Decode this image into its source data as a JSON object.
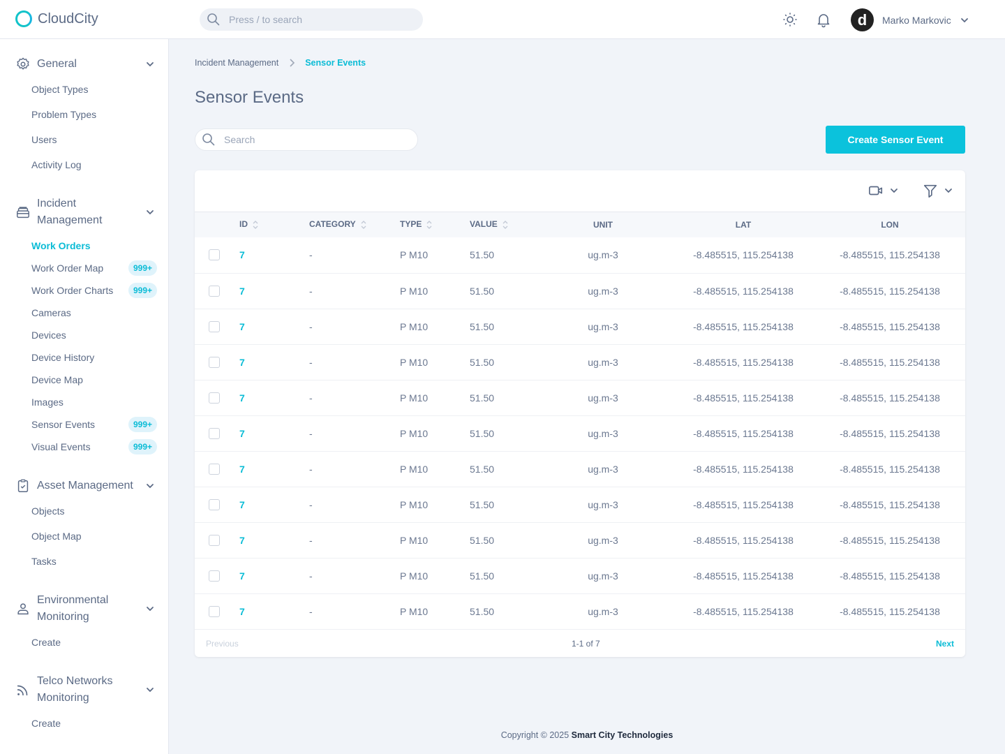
{
  "app": {
    "name": "CloudCity",
    "search_placeholder": "Press / to search",
    "user_name": "Marko Markovic",
    "avatar_letter": "d"
  },
  "sidebar": {
    "general": {
      "label": "General",
      "items": [
        "Object Types",
        "Problem Types",
        "Users",
        "Activity Log"
      ]
    },
    "incident": {
      "label_1": "Incident",
      "label_2": "Management",
      "items": [
        {
          "label": "Work Orders",
          "active": true
        },
        {
          "label": "Work Order Map",
          "badge": "999+"
        },
        {
          "label": "Work Order Charts",
          "badge": "999+"
        },
        {
          "label": "Cameras"
        },
        {
          "label": "Devices"
        },
        {
          "label": "Device History"
        },
        {
          "label": "Device Map"
        },
        {
          "label": "Images"
        },
        {
          "label": "Sensor Events",
          "badge": "999+"
        },
        {
          "label": "Visual Events",
          "badge": "999+"
        }
      ]
    },
    "asset": {
      "label": "Asset Management",
      "items": [
        "Objects",
        "Object Map",
        "Tasks"
      ]
    },
    "env": {
      "label_1": "Environmental",
      "label_2": "Monitoring",
      "items": [
        "Create"
      ]
    },
    "telco": {
      "label_1": "Telco Networks",
      "label_2": "Monitoring",
      "items": [
        "Create"
      ]
    }
  },
  "breadcrumb": {
    "parent": "Incident Management",
    "current": "Sensor Events"
  },
  "page": {
    "title": "Sensor Events",
    "search_placeholder": "Search",
    "create_label": "Create Sensor Event"
  },
  "table": {
    "columns": [
      "ID",
      "CATEGORY",
      "TYPE",
      "VALUE",
      "UNIT",
      "LAT",
      "LON"
    ],
    "rows": [
      [
        "7",
        "-",
        "P M10",
        "51.50",
        "ug.m-3",
        "-8.485515, 115.254138",
        "-8.485515, 115.254138"
      ],
      [
        "7",
        "-",
        "P M10",
        "51.50",
        "ug.m-3",
        "-8.485515, 115.254138",
        "-8.485515, 115.254138"
      ],
      [
        "7",
        "-",
        "P M10",
        "51.50",
        "ug.m-3",
        "-8.485515, 115.254138",
        "-8.485515, 115.254138"
      ],
      [
        "7",
        "-",
        "P M10",
        "51.50",
        "ug.m-3",
        "-8.485515, 115.254138",
        "-8.485515, 115.254138"
      ],
      [
        "7",
        "-",
        "P M10",
        "51.50",
        "ug.m-3",
        "-8.485515, 115.254138",
        "-8.485515, 115.254138"
      ],
      [
        "7",
        "-",
        "P M10",
        "51.50",
        "ug.m-3",
        "-8.485515, 115.254138",
        "-8.485515, 115.254138"
      ],
      [
        "7",
        "-",
        "P M10",
        "51.50",
        "ug.m-3",
        "-8.485515, 115.254138",
        "-8.485515, 115.254138"
      ],
      [
        "7",
        "-",
        "P M10",
        "51.50",
        "ug.m-3",
        "-8.485515, 115.254138",
        "-8.485515, 115.254138"
      ],
      [
        "7",
        "-",
        "P M10",
        "51.50",
        "ug.m-3",
        "-8.485515, 115.254138",
        "-8.485515, 115.254138"
      ],
      [
        "7",
        "-",
        "P M10",
        "51.50",
        "ug.m-3",
        "-8.485515, 115.254138",
        "-8.485515, 115.254138"
      ],
      [
        "7",
        "-",
        "P M10",
        "51.50",
        "ug.m-3",
        "-8.485515, 115.254138",
        "-8.485515, 115.254138"
      ]
    ]
  },
  "pager": {
    "previous": "Previous",
    "info": "1-1 of 7",
    "next": "Next"
  },
  "footer": {
    "prefix": "Copyright © 2025",
    "company": "Smart City Technologies"
  },
  "colors": {
    "accent": "#0bc2dc",
    "text": "#5b6a85",
    "background": "#f1f4f9"
  }
}
